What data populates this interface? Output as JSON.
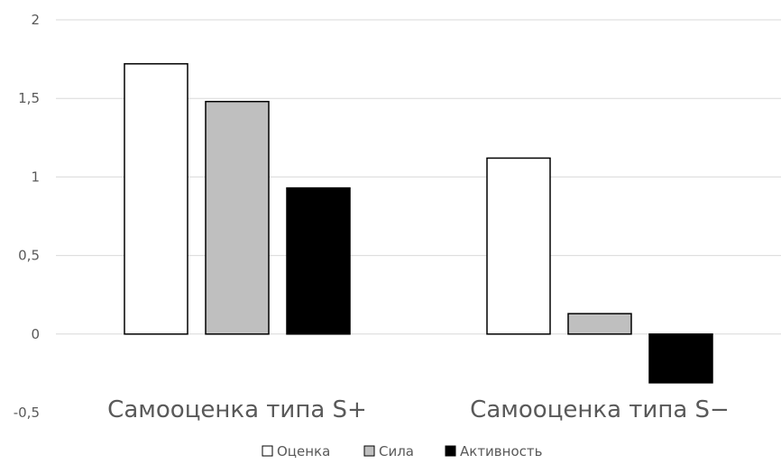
{
  "chart_data": {
    "type": "bar",
    "categories": [
      "Самооценка типа S+",
      "Самооценка типа S−"
    ],
    "series": [
      {
        "name": "Оценка",
        "values": [
          1.72,
          1.12
        ],
        "color": "#ffffff"
      },
      {
        "name": "Сила",
        "values": [
          1.48,
          0.13
        ],
        "color": "#bfbfbf"
      },
      {
        "name": "Активность",
        "values": [
          0.93,
          -0.31
        ],
        "color": "#000000"
      }
    ],
    "ylim": [
      -0.5,
      2
    ],
    "yticks": [
      "2",
      "1,5",
      "1",
      "0,5",
      "0",
      "-0,5"
    ],
    "ytick_values": [
      2,
      1.5,
      1,
      0.5,
      0,
      -0.5
    ],
    "grid": true,
    "legend_position": "bottom"
  }
}
